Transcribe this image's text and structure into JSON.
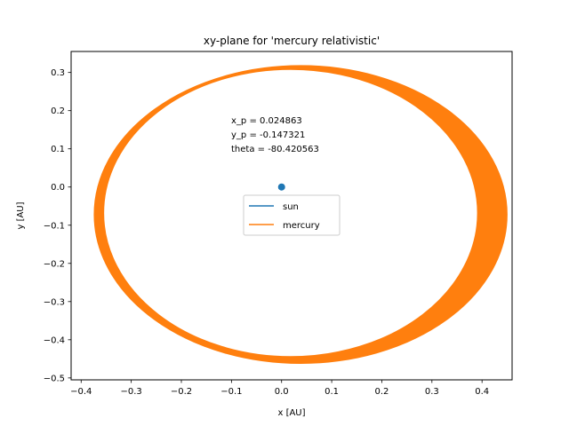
{
  "chart_data": {
    "type": "line",
    "title": "xy-plane for 'mercury relativistic'",
    "xlabel": "x [AU]",
    "ylabel": "y [AU]",
    "xlim": [
      -0.42,
      0.46
    ],
    "ylim": [
      -0.505,
      0.355
    ],
    "xticks": [
      -0.4,
      -0.3,
      -0.2,
      -0.1,
      0.0,
      0.1,
      0.2,
      0.3,
      0.4
    ],
    "yticks": [
      -0.5,
      -0.4,
      -0.3,
      -0.2,
      -0.1,
      0.0,
      0.1,
      0.2,
      0.3
    ],
    "xtick_labels": [
      "−0.4",
      "−0.3",
      "−0.2",
      "−0.1",
      "0.0",
      "0.1",
      "0.2",
      "0.3",
      "0.4"
    ],
    "ytick_labels": [
      "−0.5",
      "−0.4",
      "−0.3",
      "−0.2",
      "−0.1",
      "0.0",
      "0.1",
      "0.2",
      "0.3"
    ],
    "grid": false,
    "legend_placement": "center",
    "annotation": {
      "lines": [
        "x_p = 0.024863",
        "y_p = -0.147321",
        "theta = -80.420563"
      ],
      "x": -0.1,
      "y": 0.16
    },
    "series": [
      {
        "name": "sun",
        "color": "#1f77b4",
        "kind": "point",
        "x": [
          0.0
        ],
        "y": [
          0.0
        ]
      },
      {
        "name": "mercury",
        "color": "#ff7f0e",
        "kind": "orbit-band",
        "outer_ellipse": {
          "cx": 0.038,
          "cy": -0.072,
          "rx": 0.412,
          "ry": 0.39
        },
        "inner_ellipse": {
          "cx": 0.018,
          "cy": -0.068,
          "rx": 0.373,
          "ry": 0.376
        }
      }
    ]
  }
}
